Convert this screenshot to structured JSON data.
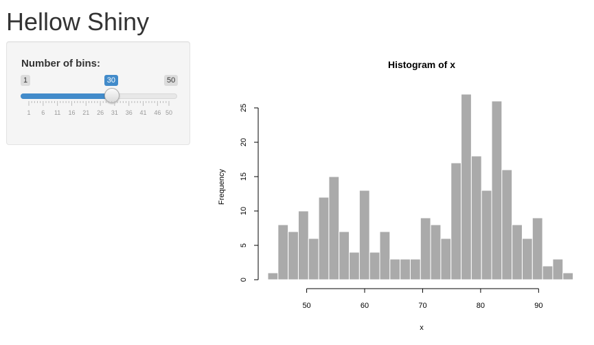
{
  "page": {
    "title": "Hellow Shiny"
  },
  "sidebar": {
    "slider": {
      "label": "Number of bins:",
      "min": 1,
      "max": 50,
      "value": 30,
      "min_label": "1",
      "max_label": "50",
      "value_label": "30",
      "tick_labels": [
        "1",
        "6",
        "11",
        "16",
        "21",
        "26",
        "31",
        "36",
        "41",
        "46",
        "50"
      ],
      "accent_color": "#428bca"
    }
  },
  "chart_data": {
    "type": "bar",
    "title": "Histogram of x",
    "xlabel": "x",
    "ylabel": "Frequency",
    "bin_start": 43.3,
    "bin_width": 1.755,
    "values": [
      1,
      8,
      7,
      10,
      6,
      12,
      15,
      7,
      4,
      13,
      4,
      7,
      3,
      3,
      3,
      9,
      8,
      6,
      17,
      27,
      18,
      13,
      26,
      16,
      8,
      6,
      9,
      2,
      3,
      1
    ],
    "xticks": [
      50,
      60,
      70,
      80,
      90
    ],
    "yticks": [
      0,
      5,
      10,
      15,
      20,
      25
    ],
    "ylim": [
      0,
      27
    ],
    "bar_color": "#aaaaaa"
  }
}
